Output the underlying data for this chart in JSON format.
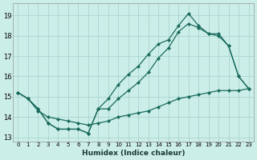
{
  "xlabel": "Humidex (Indice chaleur)",
  "background_color": "#cceee8",
  "grid_color": "#aad4ce",
  "line_color": "#1a6b5e",
  "xlim_min": -0.5,
  "xlim_max": 23.5,
  "ylim_min": 12.8,
  "ylim_max": 19.6,
  "yticks": [
    13,
    14,
    15,
    16,
    17,
    18,
    19
  ],
  "xticks": [
    0,
    1,
    2,
    3,
    4,
    5,
    6,
    7,
    8,
    9,
    10,
    11,
    12,
    13,
    14,
    15,
    16,
    17,
    18,
    19,
    20,
    21,
    22,
    23
  ],
  "x": [
    0,
    1,
    2,
    3,
    4,
    5,
    6,
    7,
    8,
    9,
    10,
    11,
    12,
    13,
    14,
    15,
    16,
    17,
    18,
    19,
    20,
    21,
    22,
    23
  ],
  "line_top": [
    15.2,
    14.9,
    14.4,
    13.7,
    13.4,
    13.4,
    13.4,
    13.2,
    14.4,
    14.9,
    15.6,
    16.1,
    16.5,
    17.1,
    17.6,
    17.8,
    18.5,
    19.1,
    18.5,
    18.1,
    18.1,
    17.5,
    16.0,
    15.4
  ],
  "line_mid": [
    15.2,
    14.9,
    14.4,
    13.7,
    13.4,
    13.4,
    13.4,
    13.2,
    14.4,
    14.4,
    14.9,
    15.3,
    15.7,
    16.2,
    16.9,
    17.4,
    18.2,
    18.6,
    18.4,
    18.1,
    18.0,
    17.5,
    16.0,
    15.4
  ],
  "line_bot": [
    15.2,
    14.9,
    14.3,
    14.0,
    13.9,
    13.8,
    13.7,
    13.6,
    13.7,
    13.8,
    14.0,
    14.1,
    14.2,
    14.3,
    14.5,
    14.7,
    14.9,
    15.0,
    15.1,
    15.2,
    15.3,
    15.3,
    15.3,
    15.4
  ]
}
